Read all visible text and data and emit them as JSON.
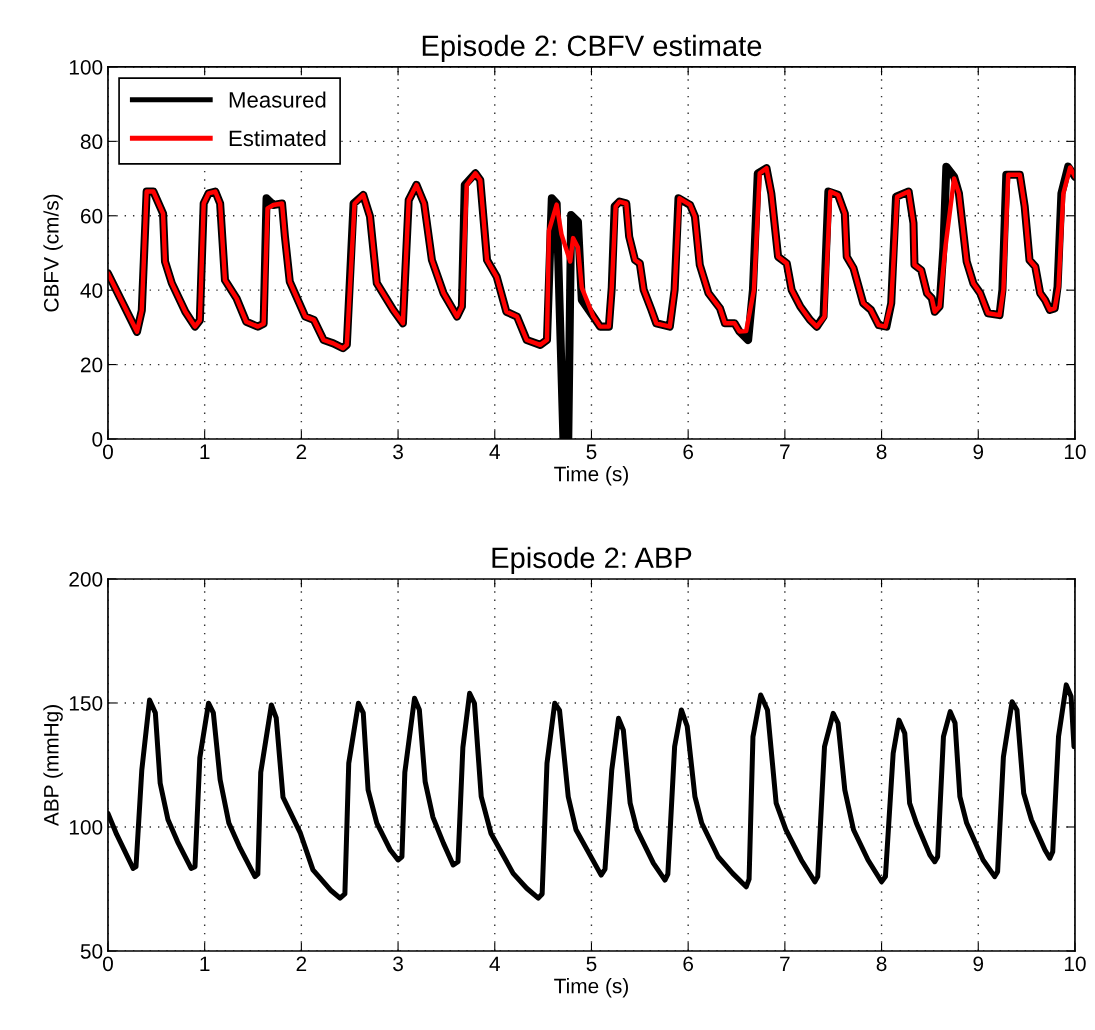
{
  "chart_data": [
    {
      "type": "line",
      "title": "Episode 2: CBFV estimate",
      "xlabel": "Time (s)",
      "ylabel": "CBFV (cm/s)",
      "xlim": [
        0,
        10
      ],
      "xticks": [
        0,
        1,
        2,
        3,
        4,
        5,
        6,
        7,
        8,
        9,
        10
      ],
      "ylim": [
        0,
        100
      ],
      "yticks": [
        0,
        20,
        40,
        60,
        80,
        100
      ],
      "grid": true,
      "legend": "top left",
      "line_style": "solid",
      "marker": "none",
      "series": [
        {
          "name": "Measured",
          "color": "#000000",
          "x": [
            0,
            0.3,
            0.35,
            0.4,
            0.47,
            0.57,
            0.59,
            0.66,
            0.8,
            0.9,
            0.95,
            0.99,
            1.04,
            1.11,
            1.16,
            1.21,
            1.33,
            1.43,
            1.55,
            1.61,
            1.64,
            1.71,
            1.8,
            1.83,
            1.88,
            2.04,
            2.13,
            2.23,
            2.33,
            2.43,
            2.47,
            2.54,
            2.64,
            2.71,
            2.78,
            2.95,
            3.05,
            3.11,
            3.19,
            3.27,
            3.35,
            3.47,
            3.61,
            3.66,
            3.69,
            3.8,
            3.85,
            3.92,
            4.02,
            4.12,
            4.23,
            4.33,
            4.47,
            4.54,
            4.59,
            4.64,
            4.71,
            4.76,
            4.79,
            4.86,
            4.9,
            5.02,
            5.09,
            5.18,
            5.21,
            5.24,
            5.29,
            5.36,
            5.39,
            5.45,
            5.5,
            5.54,
            5.62,
            5.67,
            5.81,
            5.86,
            5.9,
            6.02,
            6.07,
            6.12,
            6.21,
            6.33,
            6.38,
            6.48,
            6.53,
            6.62,
            6.67,
            6.72,
            6.81,
            6.86,
            6.93,
            7.02,
            7.07,
            7.16,
            7.26,
            7.33,
            7.4,
            7.45,
            7.55,
            7.62,
            7.64,
            7.71,
            7.81,
            7.89,
            7.97,
            8.05,
            8.1,
            8.15,
            8.28,
            8.33,
            8.34,
            8.41,
            8.47,
            8.52,
            8.55,
            8.6,
            8.64,
            8.67,
            8.75,
            8.8,
            8.88,
            8.95,
            9.02,
            9.1,
            9.22,
            9.25,
            9.29,
            9.43,
            9.48,
            9.53,
            9.59,
            9.64,
            9.69,
            9.74,
            9.79,
            9.82,
            9.86,
            9.93,
            10
          ],
          "values": [
            44.5,
            28.8,
            34.6,
            66.5,
            66.5,
            60.6,
            47.7,
            41.9,
            34.2,
            30.2,
            31.9,
            63.3,
            66,
            66.5,
            63.3,
            42.7,
            37.8,
            31.5,
            30.2,
            31,
            64.7,
            62.9,
            63.3,
            54.4,
            42.3,
            32.9,
            32,
            26.6,
            25.7,
            24.4,
            25.3,
            63.3,
            65.6,
            59.8,
            41.9,
            34.7,
            31.1,
            64.2,
            68.3,
            63.3,
            48.1,
            39.2,
            32.9,
            35.6,
            68.3,
            71.4,
            69.6,
            48.1,
            43.6,
            34.2,
            32.9,
            26.6,
            25.3,
            26.6,
            64.7,
            63.3,
            0,
            0,
            60.2,
            58.4,
            37.4,
            32.9,
            30.2,
            30.2,
            40.7,
            62.5,
            63.8,
            63.3,
            54.4,
            48.1,
            47.2,
            40.1,
            34.7,
            31.1,
            30.2,
            40.1,
            64.7,
            62.9,
            59.8,
            46.8,
            39.2,
            35.1,
            31.1,
            31.1,
            28.9,
            26.6,
            40.1,
            71.4,
            72.8,
            66,
            49,
            47.2,
            40.1,
            35.6,
            32,
            30.2,
            32.9,
            66.5,
            65.6,
            60.6,
            49,
            45.9,
            36.5,
            34.7,
            30.6,
            30.2,
            36.5,
            65.1,
            66.5,
            58,
            46.8,
            45.4,
            39.2,
            37.8,
            34.2,
            35.6,
            51.5,
            73.2,
            70.5,
            66,
            47.7,
            41.8,
            39.2,
            33.8,
            33.3,
            40.1,
            71,
            71,
            62.5,
            48.1,
            46.3,
            39.2,
            37.4,
            34.7,
            35.1,
            40.9,
            66,
            73.2,
            70.5
          ]
        },
        {
          "name": "Estimated",
          "color": "#ff0000",
          "x": [
            0,
            0.3,
            0.35,
            0.4,
            0.47,
            0.57,
            0.59,
            0.66,
            0.8,
            0.9,
            0.95,
            0.99,
            1.04,
            1.11,
            1.16,
            1.21,
            1.33,
            1.43,
            1.55,
            1.61,
            1.65,
            1.71,
            1.8,
            1.83,
            1.88,
            2.04,
            2.13,
            2.23,
            2.33,
            2.43,
            2.47,
            2.55,
            2.64,
            2.71,
            2.78,
            2.95,
            3.05,
            3.11,
            3.19,
            3.27,
            3.35,
            3.47,
            3.61,
            3.66,
            3.71,
            3.8,
            3.85,
            3.92,
            4.02,
            4.12,
            4.23,
            4.33,
            4.47,
            4.54,
            4.56,
            4.64,
            4.69,
            4.78,
            4.81,
            4.86,
            4.9,
            5.02,
            5.09,
            5.18,
            5.21,
            5.25,
            5.29,
            5.36,
            5.39,
            5.45,
            5.5,
            5.54,
            5.62,
            5.67,
            5.81,
            5.86,
            5.91,
            6.02,
            6.07,
            6.12,
            6.21,
            6.33,
            6.38,
            6.48,
            6.53,
            6.6,
            6.68,
            6.74,
            6.81,
            6.86,
            6.93,
            7.02,
            7.07,
            7.16,
            7.26,
            7.33,
            7.41,
            7.47,
            7.55,
            7.62,
            7.64,
            7.71,
            7.81,
            7.89,
            7.97,
            8.04,
            8.1,
            8.16,
            8.28,
            8.33,
            8.34,
            8.41,
            8.47,
            8.52,
            8.55,
            8.6,
            8.66,
            8.75,
            8.8,
            8.88,
            8.95,
            9.02,
            9.1,
            9.22,
            9.26,
            9.31,
            9.43,
            9.48,
            9.53,
            9.59,
            9.64,
            9.69,
            9.74,
            9.79,
            9.83,
            9.88,
            9.95,
            10
          ],
          "values": [
            44.5,
            28.8,
            34.6,
            66.5,
            66.5,
            60.6,
            47.7,
            41.9,
            34.2,
            30.2,
            31.9,
            63.3,
            66,
            66.5,
            63.3,
            42.7,
            37.8,
            31.5,
            30.2,
            31,
            62,
            62.9,
            63.3,
            54.4,
            42.3,
            32.9,
            32,
            26.6,
            25.7,
            24.4,
            25.3,
            63.3,
            65.6,
            59.8,
            41.9,
            34.7,
            31.1,
            64.2,
            68.3,
            63.3,
            48.1,
            39.2,
            32.9,
            35.6,
            68.3,
            71.4,
            69.6,
            48.1,
            43.6,
            34.2,
            32.9,
            26.6,
            25.3,
            26.6,
            56,
            63,
            55,
            47.7,
            54,
            51.5,
            40.7,
            32.9,
            30.2,
            30.2,
            40.7,
            62.5,
            63.8,
            63.3,
            54.4,
            48.1,
            47.2,
            40.1,
            34.7,
            31.1,
            30.2,
            40.1,
            64.7,
            62.9,
            59.8,
            46.8,
            39.2,
            35.1,
            31.1,
            31.1,
            28.9,
            29,
            40.1,
            71.4,
            72.8,
            66,
            49,
            47.2,
            40.1,
            35.6,
            32,
            30.2,
            32.9,
            66.5,
            65.6,
            60.6,
            49,
            45.9,
            36.5,
            34.7,
            30.6,
            30.2,
            36.5,
            65.1,
            66.5,
            58,
            46.8,
            45.4,
            39.2,
            37.8,
            34.2,
            35.6,
            51.5,
            70,
            66,
            47.7,
            41.8,
            39.2,
            33.8,
            33.3,
            40.1,
            71,
            71,
            62.5,
            48.1,
            46.3,
            39.2,
            37.4,
            34.7,
            35.1,
            40.9,
            66,
            73,
            70.5
          ]
        }
      ]
    },
    {
      "type": "line",
      "title": "Episode 2: ABP",
      "xlabel": "Time (s)",
      "ylabel": "ABP (mmHg)",
      "xlim": [
        0,
        10
      ],
      "xticks": [
        0,
        1,
        2,
        3,
        4,
        5,
        6,
        7,
        8,
        9,
        10
      ],
      "ylim": [
        50,
        200
      ],
      "yticks": [
        50,
        100,
        150,
        200
      ],
      "grid": true,
      "legend": false,
      "line_style": "solid",
      "marker": "none",
      "series": [
        {
          "color": "#000000",
          "x": [
            0,
            0.09,
            0.26,
            0.29,
            0.35,
            0.43,
            0.49,
            0.54,
            0.62,
            0.72,
            0.86,
            0.9,
            0.95,
            1.04,
            1.09,
            1.16,
            1.25,
            1.36,
            1.52,
            1.55,
            1.58,
            1.69,
            1.74,
            1.81,
            1.99,
            2.12,
            2.3,
            2.4,
            2.45,
            2.49,
            2.59,
            2.64,
            2.69,
            2.78,
            2.92,
            3.0,
            3.04,
            3.07,
            3.17,
            3.22,
            3.28,
            3.36,
            3.47,
            3.57,
            3.62,
            3.67,
            3.74,
            3.79,
            3.86,
            3.96,
            4.19,
            4.33,
            4.45,
            4.49,
            4.54,
            4.62,
            4.67,
            4.76,
            4.84,
            5.1,
            5.14,
            5.21,
            5.28,
            5.33,
            5.4,
            5.47,
            5.64,
            5.76,
            5.79,
            5.86,
            5.93,
            5.99,
            6.07,
            6.14,
            6.31,
            6.46,
            6.6,
            6.63,
            6.67,
            6.75,
            6.82,
            6.91,
            7.01,
            7.17,
            7.31,
            7.34,
            7.41,
            7.5,
            7.55,
            7.62,
            7.71,
            7.86,
            8.0,
            8.04,
            8.12,
            8.18,
            8.24,
            8.29,
            8.36,
            8.5,
            8.55,
            8.58,
            8.64,
            8.71,
            8.76,
            8.81,
            8.88,
            9.05,
            9.17,
            9.2,
            9.26,
            9.35,
            9.4,
            9.47,
            9.55,
            9.69,
            9.74,
            9.77,
            9.83,
            9.91,
            9.96,
            9.99
          ],
          "values": [
            105.5,
            97,
            83.3,
            84,
            123,
            151.2,
            146,
            117.6,
            103,
            94,
            83.3,
            84,
            128,
            149.9,
            146,
            119,
            101.6,
            92,
            80,
            81,
            122,
            149.2,
            144,
            112,
            97.5,
            82.7,
            74.6,
            71.3,
            73,
            125.7,
            149.9,
            146,
            115,
            101.6,
            90.7,
            86.7,
            88,
            122,
            151.9,
            147.3,
            118.3,
            104,
            93.4,
            84.7,
            86,
            132,
            153.9,
            149.9,
            112.2,
            97.5,
            81.3,
            75.3,
            71.3,
            73,
            125.7,
            149.9,
            147,
            112.2,
            98.9,
            80.6,
            83,
            123,
            143.8,
            139,
            109.6,
            98.9,
            85.4,
            78.6,
            81,
            132.4,
            147.2,
            140.6,
            112.2,
            101.6,
            88,
            81.3,
            75.9,
            79,
            136.4,
            153.2,
            147.2,
            109.6,
            98.9,
            86.7,
            77.9,
            80,
            132.4,
            145.8,
            141.9,
            114.9,
            98.9,
            86.7,
            77.9,
            80,
            129.7,
            143.1,
            137.8,
            109.6,
            101.6,
            88.7,
            86,
            88,
            136.4,
            146.5,
            141.9,
            112.2,
            101.6,
            86.7,
            80,
            82,
            128.3,
            150.5,
            147.2,
            113.6,
            102.9,
            90.7,
            87.4,
            90,
            136.4,
            157.3,
            152.6,
            132.4
          ]
        }
      ]
    }
  ]
}
